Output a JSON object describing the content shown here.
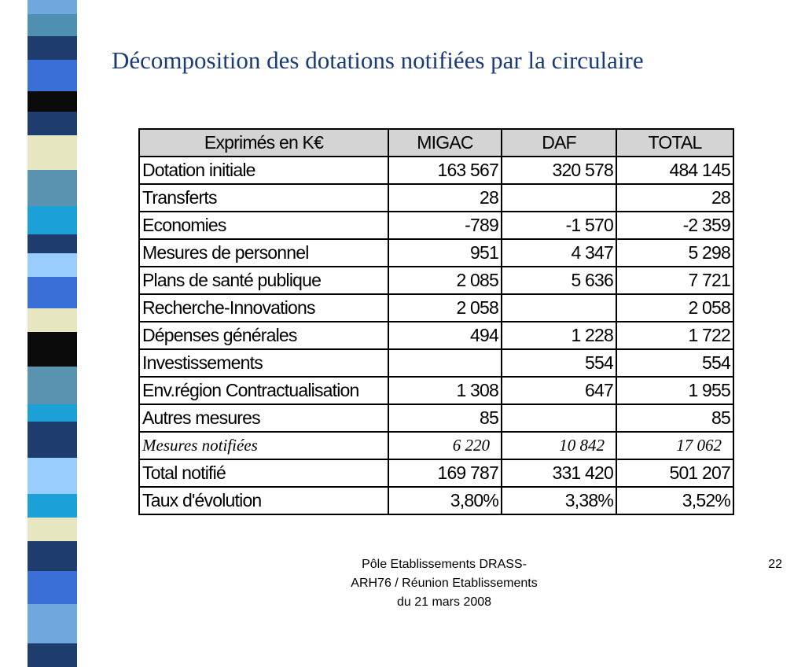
{
  "header": {
    "title": "Décomposition des dotations notifiées par la circulaire"
  },
  "table": {
    "columns": [
      "Exprimés en K€",
      "MIGAC",
      "DAF",
      "TOTAL"
    ],
    "rows": [
      [
        "Dotation initiale",
        "163 567",
        "320 578",
        "484 145"
      ],
      [
        "Transferts",
        "28",
        null,
        "28"
      ],
      [
        "Economies",
        "-789",
        "-1 570",
        "-2 359"
      ],
      [
        "Mesures de personnel",
        "951",
        "4 347",
        "5 298"
      ],
      [
        "Plans de santé publique",
        "2 085",
        "5 636",
        "7 721"
      ],
      [
        "Recherche-Innovations",
        "2 058",
        null,
        "2 058"
      ],
      [
        "Dépenses générales",
        "494",
        "1 228",
        "1 722"
      ],
      [
        "Investissements",
        null,
        "554",
        "554"
      ],
      [
        "Env.région Contractualisation",
        "1 308",
        "647",
        "1 955"
      ],
      [
        "Autres mesures",
        "85",
        null,
        "85"
      ],
      [
        "Mesures notifiées",
        "6 220",
        "10 842",
        "17 062"
      ],
      [
        "Total notifié",
        "169 787",
        "331 420",
        "501 207"
      ],
      [
        "Taux d'évolution",
        "3,80%",
        "3,38%",
        "3,52%"
      ]
    ],
    "italic_row": 10
  },
  "footer": {
    "lines": [
      "Pôle Etablissements DRASS-",
      "ARH76 / Réunion Etablissements",
      "du 21 mars 2008"
    ],
    "page": "22"
  }
}
